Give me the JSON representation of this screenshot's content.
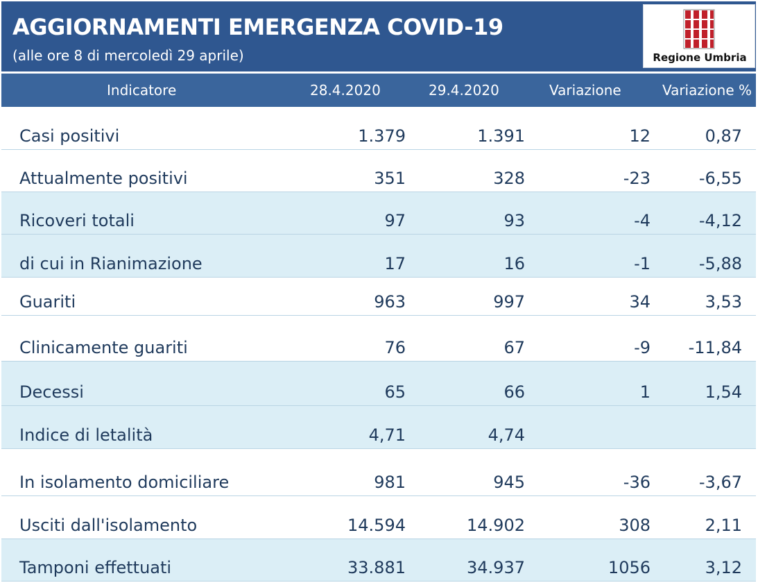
{
  "header": {
    "title": "AGGIORNAMENTI EMERGENZA COVID-19",
    "subtitle": "(alle ore 8 di mercoledì 29 aprile)",
    "logo_text": "Regione Umbria"
  },
  "colors": {
    "banner": "#2f5790",
    "table_header": "#3a659c",
    "row_alt": "#dbeef6",
    "text": "#1f3a5c",
    "logo_red": "#c0202a"
  },
  "table": {
    "columns": [
      "Indicatore",
      "28.4.2020",
      "29.4.2020",
      "Variazione",
      "Variazione %"
    ],
    "rows": [
      {
        "label": "Casi positivi",
        "d1": "1.379",
        "d2": "1.391",
        "var": "12",
        "pct": "0,87",
        "shaded": false
      },
      {
        "label": "Attualmente positivi",
        "d1": "351",
        "d2": "328",
        "var": "-23",
        "pct": "-6,55",
        "shaded": false
      },
      {
        "label": "Ricoveri totali",
        "d1": "97",
        "d2": "93",
        "var": "-4",
        "pct": "-4,12",
        "shaded": true
      },
      {
        "label": "di cui in Rianimazione",
        "d1": "17",
        "d2": "16",
        "var": "-1",
        "pct": "-5,88",
        "shaded": true
      },
      {
        "label": "Guariti",
        "d1": "963",
        "d2": "997",
        "var": "34",
        "pct": "3,53",
        "shaded": false
      },
      {
        "label": "Clinicamente guariti",
        "d1": "76",
        "d2": "67",
        "var": "-9",
        "pct": "-11,84",
        "shaded": false
      },
      {
        "label": "Decessi",
        "d1": "65",
        "d2": "66",
        "var": "1",
        "pct": "1,54",
        "shaded": true
      },
      {
        "label": "Indice di letalità",
        "d1": "4,71",
        "d2": "4,74",
        "var": "",
        "pct": "",
        "shaded": true
      },
      {
        "label": "In isolamento domiciliare",
        "d1": "981",
        "d2": "945",
        "var": "-36",
        "pct": "-3,67",
        "shaded": false
      },
      {
        "label": "Usciti dall'isolamento",
        "d1": "14.594",
        "d2": "14.902",
        "var": "308",
        "pct": "2,11",
        "shaded": false
      },
      {
        "label": "Tamponi effettuati",
        "d1": "33.881",
        "d2": "34.937",
        "var": "1056",
        "pct": "3,12",
        "shaded": true
      }
    ]
  }
}
